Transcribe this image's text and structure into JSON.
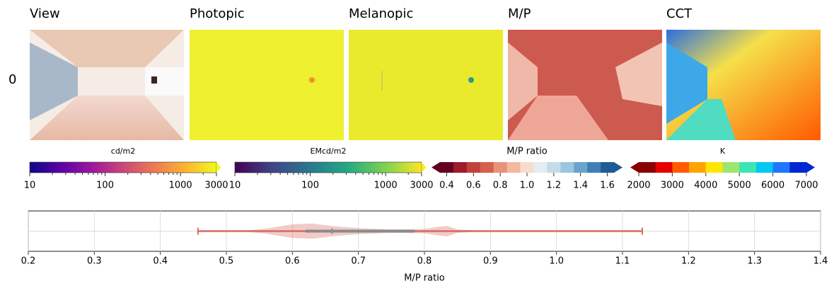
{
  "row_label": "0",
  "panels": [
    {
      "title": "View"
    },
    {
      "title": "Photopic"
    },
    {
      "title": "Melanopic"
    },
    {
      "title": "M/P"
    },
    {
      "title": "CCT"
    }
  ],
  "colorbars": [
    {
      "label": "cd/m2",
      "scale": "log",
      "lim": [
        10,
        3000
      ],
      "ticks": [
        10,
        100,
        1000,
        3000
      ],
      "colors": [
        "#0d0887",
        "#5c01a6",
        "#9c179e",
        "#cc4778",
        "#ed7953",
        "#fdb42f",
        "#f0f921"
      ]
    },
    {
      "label": "EMcd/m2",
      "scale": "log",
      "lim": [
        10,
        3000
      ],
      "ticks": [
        10,
        100,
        1000,
        3000
      ],
      "colors": [
        "#440154",
        "#414487",
        "#2a788e",
        "#22a884",
        "#7ad151",
        "#fde725"
      ]
    },
    {
      "label": "M/P ratio",
      "scale": "discrete",
      "lim": [
        0.35,
        1.65
      ],
      "ticks": [
        0.4,
        0.6,
        0.8,
        {
          "value": 1,
          "label": "1.0"
        },
        1.2,
        1.4,
        1.6
      ],
      "colors": [
        "#67001f",
        "#9e1a2c",
        "#c2403c",
        "#d6604d",
        "#e8927a",
        "#f4b89e",
        "#f9dccc",
        "#e3edf3",
        "#c4dbea",
        "#9cc6df",
        "#6aa4cc",
        "#3f7fb6",
        "#1f5b96"
      ]
    },
    {
      "label": "K",
      "scale": "discrete",
      "lim": [
        2000,
        7000
      ],
      "ticks": [
        2000,
        3000,
        4000,
        5000,
        6000,
        7000
      ],
      "colors": [
        "#8b0000",
        "#e60000",
        "#ff5a00",
        "#ffa500",
        "#ffe600",
        "#9be66e",
        "#3ce6b4",
        "#00c8f0",
        "#1e78ff",
        "#0028d2"
      ]
    }
  ],
  "chart_data": {
    "type": "violin",
    "xlabel": "M/P ratio",
    "xlim": [
      0.2,
      1.4
    ],
    "xticks": [
      0.2,
      0.3,
      0.4,
      0.5,
      0.6,
      0.7,
      0.8,
      0.9,
      {
        "value": 1,
        "label": "1.0"
      },
      1.1,
      1.2,
      1.3,
      1.4
    ],
    "grid": true,
    "color": "#d66b62",
    "box_color": "#8a8a8a",
    "whiskers": [
      0.457,
      1.13
    ],
    "box": [
      0.62,
      0.785
    ],
    "median": 0.66,
    "density": {
      "x": [
        0.52,
        0.56,
        0.6,
        0.63,
        0.66,
        0.7,
        0.75,
        0.8,
        0.82,
        0.835,
        0.85,
        0.9
      ],
      "width": [
        0,
        0.3,
        0.8,
        0.9,
        0.6,
        0.35,
        0.2,
        0.25,
        0.5,
        0.6,
        0.2,
        0
      ]
    }
  }
}
